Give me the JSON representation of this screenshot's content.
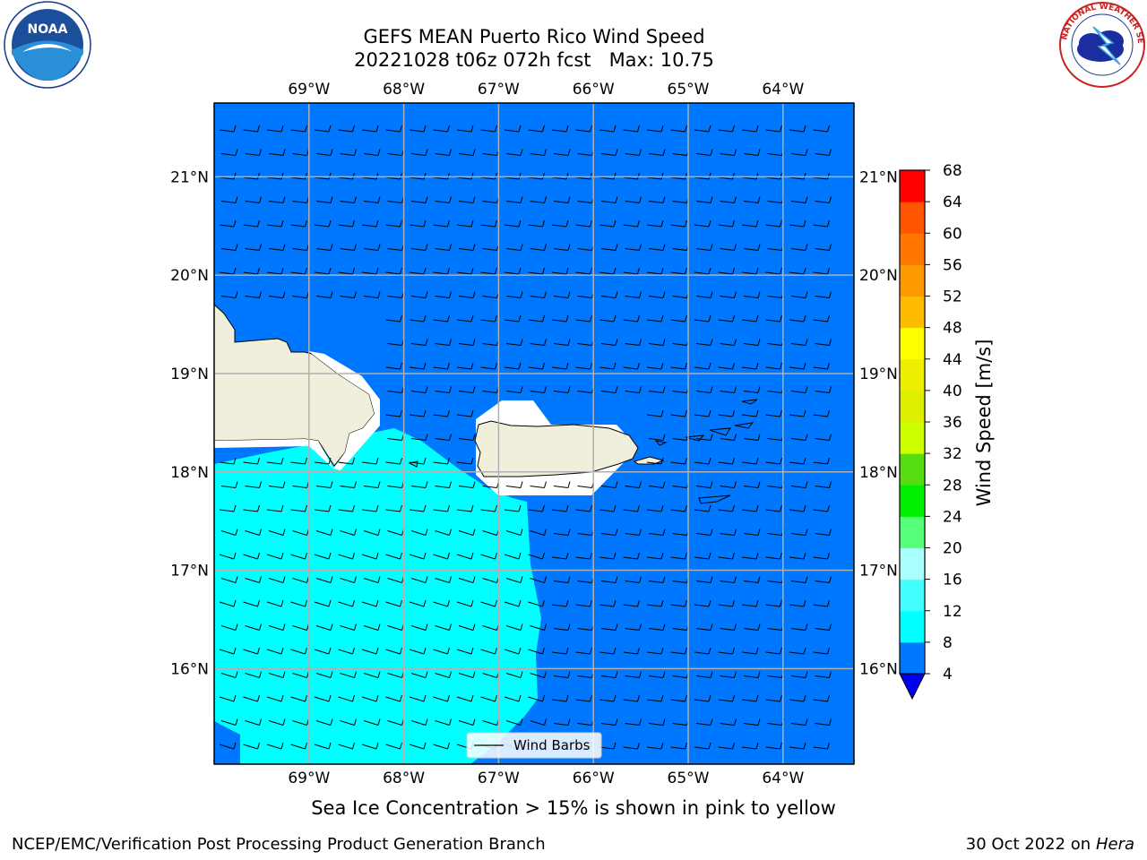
{
  "title": {
    "line1": "GEFS MEAN Puerto Rico Wind Speed",
    "line2": "20221028 t06z 072h fcst   Max: 10.75"
  },
  "map": {
    "lon_ticks": [
      "69°W",
      "68°W",
      "67°W",
      "66°W",
      "65°W",
      "64°W"
    ],
    "lat_ticks": [
      "21°N",
      "20°N",
      "19°N",
      "18°N",
      "17°N",
      "16°N"
    ],
    "land_color": "#efefdc",
    "wind_barb_direction": "easterly",
    "legend_label": "Wind Barbs"
  },
  "colorbar": {
    "label": "Wind Speed [m/s]",
    "tick_labels": [
      "68",
      "64",
      "60",
      "56",
      "52",
      "48",
      "44",
      "40",
      "36",
      "32",
      "28",
      "24",
      "20",
      "16",
      "12",
      "8",
      "4"
    ],
    "bins": [
      {
        "from": 4,
        "to": 8,
        "color": "#0077ff"
      },
      {
        "from": 8,
        "to": 12,
        "color": "#00ffff"
      },
      {
        "from": 12,
        "to": 16,
        "color": "#44ffff"
      },
      {
        "from": 16,
        "to": 20,
        "color": "#aaffff"
      },
      {
        "from": 20,
        "to": 24,
        "color": "#55ff77"
      },
      {
        "from": 24,
        "to": 28,
        "color": "#00ee00"
      },
      {
        "from": 28,
        "to": 32,
        "color": "#55dd11"
      },
      {
        "from": 32,
        "to": 36,
        "color": "#ccff00"
      },
      {
        "from": 36,
        "to": 40,
        "color": "#ddee00"
      },
      {
        "from": 40,
        "to": 44,
        "color": "#eeee00"
      },
      {
        "from": 44,
        "to": 48,
        "color": "#ffff00"
      },
      {
        "from": 48,
        "to": 52,
        "color": "#ffbb00"
      },
      {
        "from": 52,
        "to": 56,
        "color": "#ff9900"
      },
      {
        "from": 56,
        "to": 60,
        "color": "#ff7700"
      },
      {
        "from": 60,
        "to": 64,
        "color": "#ff5500"
      },
      {
        "from": 64,
        "to": 68,
        "color": "#ff0000"
      }
    ],
    "extend_color": "#0000ee"
  },
  "footer": {
    "sea_ice": "Sea Ice Concentration > 15% is shown in pink to yellow",
    "branch": "NCEP/EMC/Verification Post Processing Product Generation Branch",
    "date": "30 Oct 2022 on",
    "machine": "Hera"
  },
  "logos": {
    "left": "NOAA",
    "right": "NATIONAL WEATHER SERVICE"
  }
}
